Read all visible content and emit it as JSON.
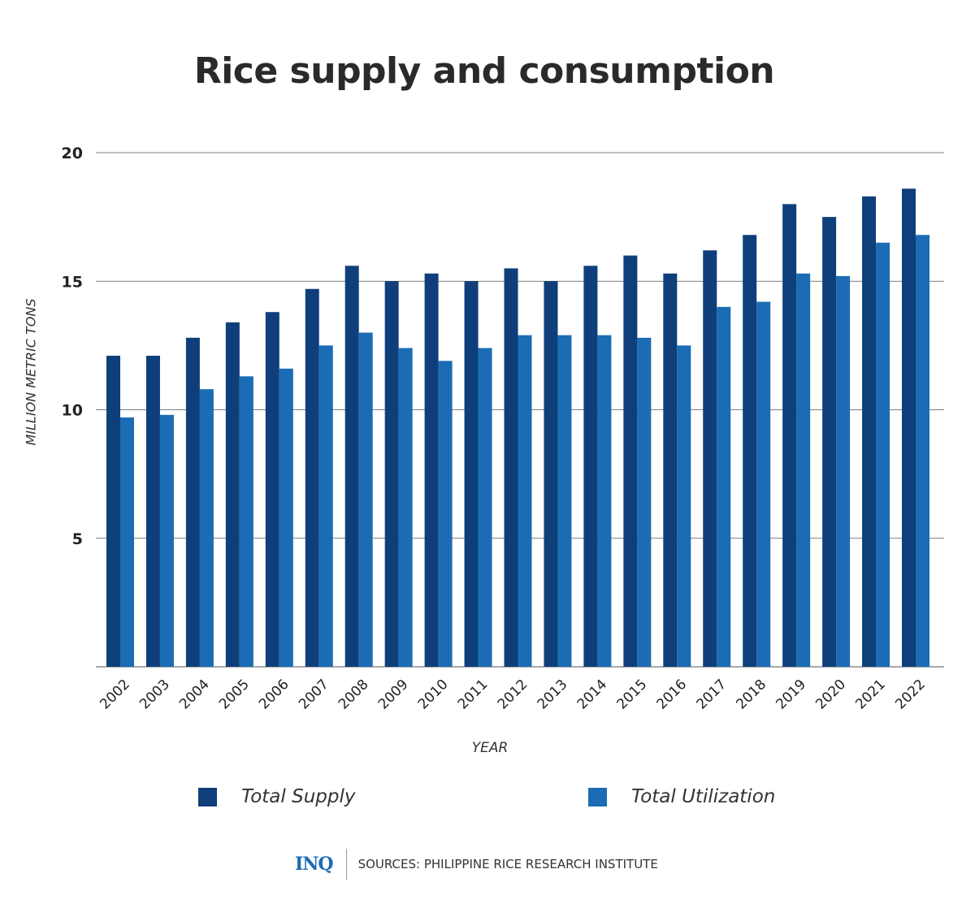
{
  "chart_data": {
    "type": "bar",
    "title": "Rice supply and consumption",
    "xlabel": "YEAR",
    "ylabel": "MILLION METRIC TONS",
    "ylim": [
      0,
      20
    ],
    "yticks": [
      5,
      10,
      15,
      20
    ],
    "grid": true,
    "legend_position": "bottom",
    "categories": [
      "2002",
      "2003",
      "2004",
      "2005",
      "2006",
      "2007",
      "2008",
      "2009",
      "2010",
      "2011",
      "2012",
      "2013",
      "2014",
      "2015",
      "2016",
      "2017",
      "2018",
      "2019",
      "2020",
      "2021",
      "2022"
    ],
    "series": [
      {
        "name": "Total Supply",
        "color": "#0e3f7b",
        "values": [
          12.1,
          12.1,
          12.8,
          13.4,
          13.8,
          14.7,
          15.6,
          15.0,
          15.3,
          15.0,
          15.5,
          15.0,
          15.6,
          16.0,
          15.3,
          16.2,
          16.8,
          18.0,
          17.5,
          18.3,
          18.6
        ]
      },
      {
        "name": "Total Utilization",
        "color": "#1b6cb4",
        "values": [
          9.7,
          9.8,
          10.8,
          11.3,
          11.6,
          12.5,
          13.0,
          12.4,
          11.9,
          12.4,
          12.9,
          12.9,
          12.9,
          12.8,
          12.5,
          14.0,
          14.2,
          15.3,
          15.2,
          16.5,
          16.8
        ]
      }
    ]
  },
  "footer": {
    "logo": "INQ",
    "source": "SOURCES: PHILIPPINE RICE RESEARCH INSTITUTE"
  }
}
